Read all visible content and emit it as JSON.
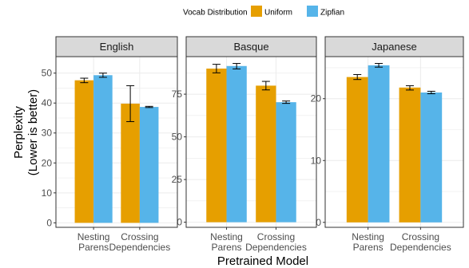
{
  "chart_data": {
    "type": "bar",
    "legend": {
      "title": "Vocab Distribution",
      "position": "top",
      "entries": [
        {
          "name": "Uniform",
          "color": "#E69F00"
        },
        {
          "name": "Zipfian",
          "color": "#56B4E9"
        }
      ]
    },
    "xlabel": "Pretrained Model",
    "ylabel_lines": [
      "Perplexity",
      "(Lower is better)"
    ],
    "grid": true,
    "categories": [
      [
        "Nesting",
        "Parens"
      ],
      [
        "Crossing",
        "Dependencies"
      ]
    ],
    "panels": [
      {
        "title": "English",
        "ylim": [
          -1.5,
          55.5
        ],
        "yticks": [
          0,
          10,
          20,
          30,
          40,
          50
        ],
        "series": [
          {
            "name": "Uniform",
            "values": [
              47.6,
              39.8
            ],
            "err_low": [
              46.8,
              33.8
            ],
            "err_high": [
              48.3,
              45.8
            ]
          },
          {
            "name": "Zipfian",
            "values": [
              49.3,
              38.7
            ],
            "err_low": [
              48.6,
              38.5
            ],
            "err_high": [
              50.0,
              38.9
            ]
          }
        ]
      },
      {
        "title": "Basque",
        "ylim": [
          -3,
          97
        ],
        "yticks": [
          0,
          25,
          50,
          75
        ],
        "series": [
          {
            "name": "Uniform",
            "values": [
              90,
              80
            ],
            "err_low": [
              87.5,
              77.5
            ],
            "err_high": [
              92.5,
              82.5
            ]
          },
          {
            "name": "Zipfian",
            "values": [
              91.5,
              70.3
            ],
            "err_low": [
              89.8,
              69.6
            ],
            "err_high": [
              93,
              71
            ]
          }
        ]
      },
      {
        "title": "Japanese",
        "ylim": [
          -0.8,
          26.8
        ],
        "yticks": [
          0,
          10,
          20
        ],
        "series": [
          {
            "name": "Uniform",
            "values": [
              23.5,
              21.8
            ],
            "err_low": [
              23.1,
              21.4
            ],
            "err_high": [
              23.9,
              22.1
            ]
          },
          {
            "name": "Zipfian",
            "values": [
              25.4,
              21
            ],
            "err_low": [
              25.1,
              20.8
            ],
            "err_high": [
              25.7,
              21.2
            ]
          }
        ]
      }
    ]
  }
}
